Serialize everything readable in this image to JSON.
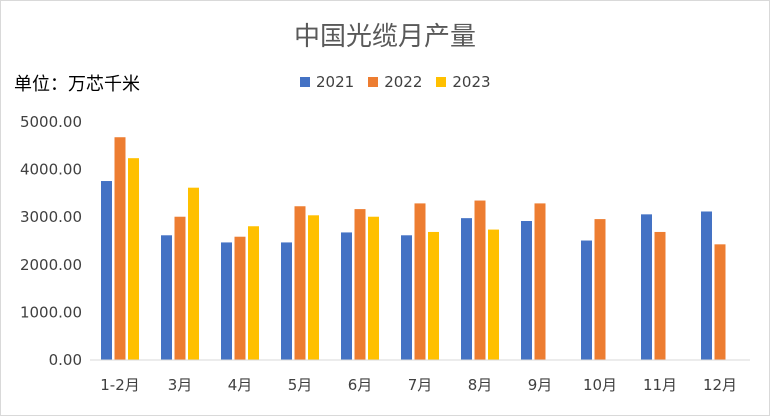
{
  "chart_data": {
    "type": "bar",
    "title": "中国光缆月产量",
    "ylabel": "单位：万芯千米",
    "categories": [
      "1-2月",
      "3月",
      "4月",
      "5月",
      "6月",
      "7月",
      "8月",
      "9月",
      "10月",
      "11月",
      "12月"
    ],
    "series": [
      {
        "name": "2021",
        "color": "#4472c4",
        "values": [
          3760,
          2620,
          2470,
          2470,
          2680,
          2620,
          2980,
          2920,
          2510,
          3060,
          3120
        ]
      },
      {
        "name": "2022",
        "color": "#ed7d31",
        "values": [
          4680,
          3010,
          2590,
          3230,
          3170,
          3290,
          3350,
          3290,
          2960,
          2690,
          2430
        ]
      },
      {
        "name": "2023",
        "color": "#ffc000",
        "values": [
          4240,
          3620,
          2810,
          3040,
          3010,
          2690,
          2740,
          null,
          null,
          null,
          null
        ]
      }
    ],
    "yticks": [
      "0.00",
      "1000.00",
      "2000.00",
      "3000.00",
      "4000.00",
      "5000.00"
    ],
    "ylim": [
      0,
      5000
    ],
    "legend_position": "top-center",
    "grid": false
  }
}
